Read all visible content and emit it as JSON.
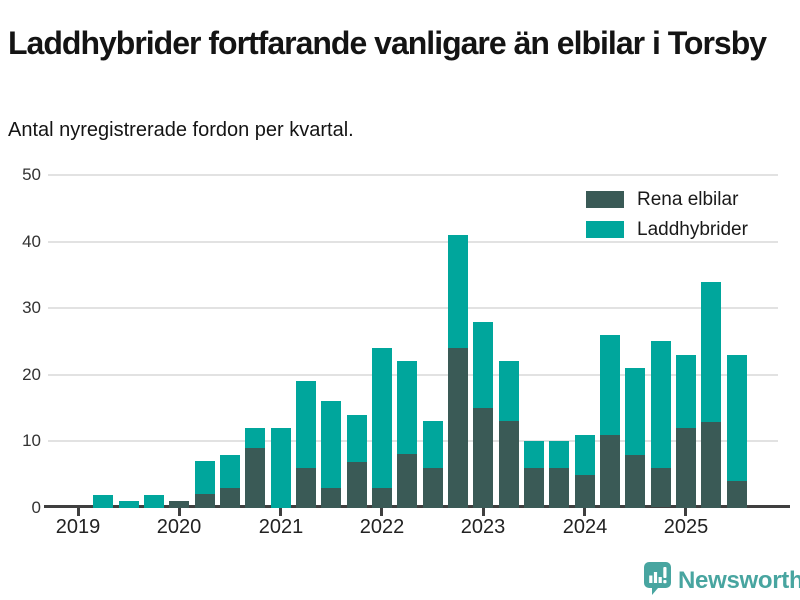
{
  "header": {
    "title": "Laddhybrider fortfarande vanligare än elbilar i Torsby",
    "subtitle": "Antal nyregistrerade fordon per kvartal."
  },
  "chart_data": {
    "type": "bar",
    "stacked": true,
    "title": "Laddhybrider fortfarande vanligare än elbilar i Torsby",
    "subtitle": "Antal nyregistrerade fordon per kvartal.",
    "categories": [
      "2019 Q1",
      "2019 Q2",
      "2019 Q3",
      "2019 Q4",
      "2020 Q1",
      "2020 Q2",
      "2020 Q3",
      "2020 Q4",
      "2021 Q1",
      "2021 Q2",
      "2021 Q3",
      "2021 Q4",
      "2022 Q1",
      "2022 Q2",
      "2022 Q3",
      "2022 Q4",
      "2023 Q1",
      "2023 Q2",
      "2023 Q3",
      "2023 Q4",
      "2024 Q1",
      "2024 Q2",
      "2024 Q3",
      "2024 Q4",
      "2025 Q1",
      "2025 Q2",
      "2025 Q3"
    ],
    "series": [
      {
        "name": "Rena elbilar",
        "color": "#3a5a56",
        "values": [
          0,
          0,
          0,
          0,
          1,
          2,
          3,
          9,
          0,
          6,
          3,
          7,
          3,
          8,
          6,
          24,
          15,
          13,
          6,
          6,
          5,
          11,
          8,
          6,
          12,
          13,
          4
        ]
      },
      {
        "name": "Laddhybrider",
        "color": "#00a69c",
        "values": [
          0,
          2,
          1,
          2,
          0,
          5,
          5,
          3,
          12,
          13,
          13,
          7,
          21,
          14,
          7,
          17,
          13,
          9,
          4,
          4,
          6,
          15,
          13,
          19,
          11,
          21,
          19
        ]
      }
    ],
    "ylim": [
      0,
      50
    ],
    "yticks": [
      0,
      10,
      20,
      30,
      40,
      50
    ],
    "xticks": [
      {
        "label": "2019",
        "index": 0
      },
      {
        "label": "2020",
        "index": 4
      },
      {
        "label": "2021",
        "index": 8
      },
      {
        "label": "2022",
        "index": 12
      },
      {
        "label": "2023",
        "index": 16
      },
      {
        "label": "2024",
        "index": 20
      },
      {
        "label": "2025",
        "index": 24
      }
    ],
    "grid": true,
    "legend_position": "top-right"
  },
  "colors": {
    "electric": "#3a5a56",
    "hybrid": "#00a69c",
    "axis": "#3f3f3f",
    "grid": "#e2e2e2",
    "brand": "#48a5a0"
  },
  "footer": {
    "brand": "Newsworthy"
  }
}
